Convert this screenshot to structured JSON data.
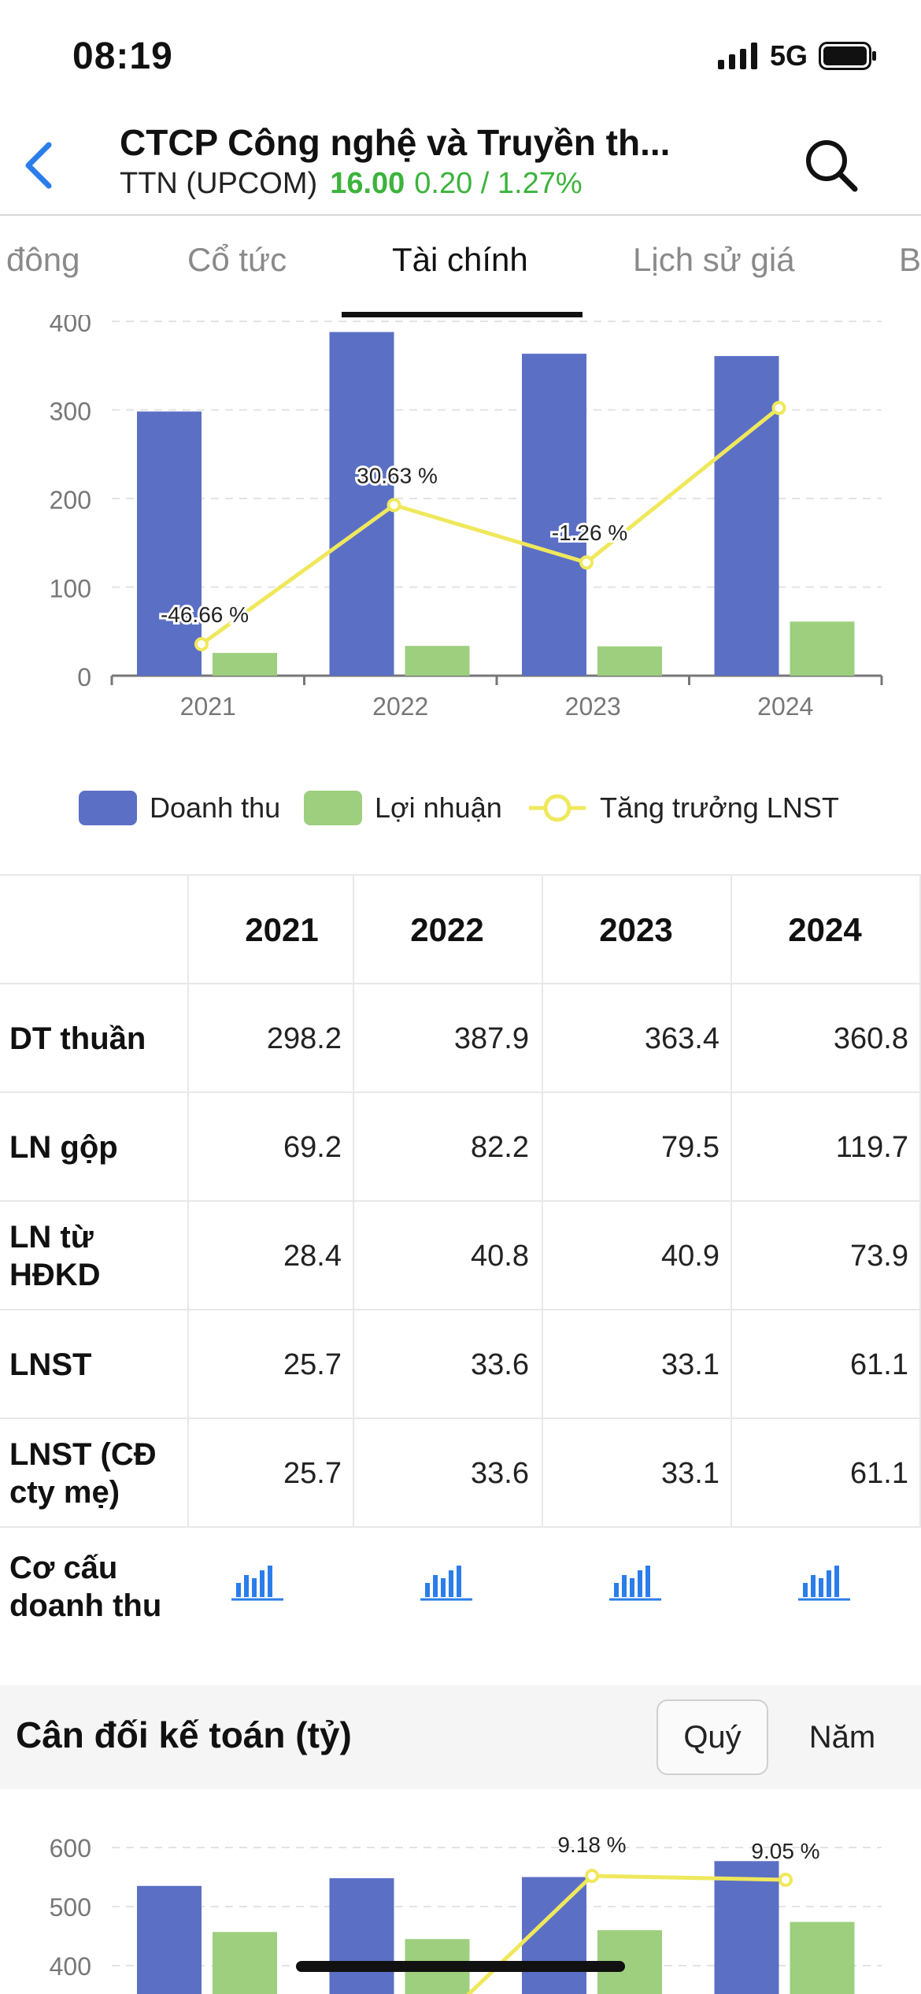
{
  "status_bar": {
    "time": "08:19",
    "network": "5G"
  },
  "header": {
    "title": "CTCP Công nghệ và Truyền th...",
    "ticker": "TTN (UPCOM)",
    "price": "16.00",
    "change": "0.20 / 1.27%"
  },
  "tabs": [
    "đông",
    "Cổ tức",
    "Tài chính",
    "Lịch sử giá",
    "B"
  ],
  "active_tab": "Tài chính",
  "colors": {
    "revenue": "#5b6fc5",
    "profit": "#9dcf7e",
    "growth": "#efe85c",
    "positive": "#3cb33c"
  },
  "chart_data": [
    {
      "type": "bar",
      "categories": [
        "2021",
        "2022",
        "2023",
        "2024"
      ],
      "y_ticks": [
        "0",
        "100",
        "200",
        "300",
        "400"
      ],
      "ylim": [
        0,
        400
      ],
      "series": [
        {
          "name": "Doanh thu",
          "type": "bar",
          "values": [
            298.2,
            387.9,
            363.4,
            360.8
          ]
        },
        {
          "name": "Lợi nhuận",
          "type": "bar",
          "values": [
            25.7,
            33.6,
            33.1,
            61.1
          ]
        },
        {
          "name": "Tăng trưởng LNST",
          "type": "line",
          "values": [
            -46.66,
            30.63,
            -1.26,
            84.59
          ],
          "labels": [
            "-46.66 %",
            "30.63 %",
            "-1.26 %",
            ""
          ]
        }
      ],
      "legend_position": "bottom",
      "grid": true
    },
    {
      "type": "bar",
      "y_ticks": [
        "400",
        "500",
        "600"
      ],
      "series": [
        {
          "type": "bar",
          "values": [
            535,
            548,
            550,
            577
          ]
        },
        {
          "type": "bar",
          "values": [
            457,
            445,
            460,
            474
          ]
        },
        {
          "type": "line",
          "labels": [
            "",
            "",
            "9.18 %",
            "9.05 %"
          ]
        }
      ],
      "grid": true
    }
  ],
  "legend": [
    "Doanh thu",
    "Lợi nhuận",
    "Tăng trưởng LNST"
  ],
  "table": {
    "columns": [
      "2021",
      "2022",
      "2023",
      "2024"
    ],
    "rows": [
      {
        "label": "DT thuần",
        "values": [
          "298.2",
          "387.9",
          "363.4",
          "360.8"
        ]
      },
      {
        "label": "LN gộp",
        "values": [
          "69.2",
          "82.2",
          "79.5",
          "119.7"
        ]
      },
      {
        "label": "LN từ HĐKD",
        "values": [
          "28.4",
          "40.8",
          "40.9",
          "73.9"
        ]
      },
      {
        "label": "LNST",
        "values": [
          "25.7",
          "33.6",
          "33.1",
          "61.1"
        ]
      },
      {
        "label": "LNST (CĐ cty mẹ)",
        "values": [
          "25.7",
          "33.6",
          "33.1",
          "61.1"
        ]
      }
    ],
    "mix_label": "Cơ cấu doanh thu"
  },
  "section": {
    "title": "Cân đối kế toán (tỷ)",
    "buttons": [
      "Quý",
      "Năm"
    ]
  }
}
